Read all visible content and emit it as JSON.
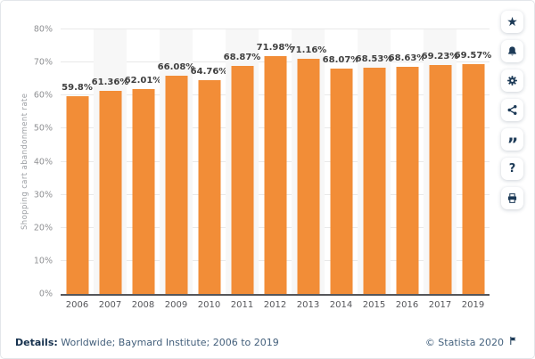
{
  "chart_data": {
    "type": "bar",
    "title": "",
    "categories": [
      "2006",
      "2007",
      "2008",
      "2009",
      "2010",
      "2011",
      "2012",
      "2013",
      "2014",
      "2015",
      "2016",
      "2017",
      "2019"
    ],
    "values": [
      59.8,
      61.36,
      62.01,
      66.08,
      64.76,
      68.87,
      71.98,
      71.16,
      68.07,
      68.53,
      68.63,
      69.23,
      69.57
    ],
    "value_labels": [
      "59.8%",
      "61.36%",
      "62.01%",
      "66.08%",
      "64.76%",
      "68.87%",
      "71.98%",
      "71.16%",
      "68.07%",
      "68.53%",
      "68.63%",
      "69.23%",
      "69.57%"
    ],
    "xlabel": "",
    "ylabel": "Shopping cart abandonment rate",
    "ylim": [
      0,
      80
    ],
    "ytick_step": 10,
    "ytick_suffix": "%",
    "grid": true,
    "legend": null,
    "bar_color": "#f28d37",
    "stripe_color": "#f7f7f7"
  },
  "sidebar": {
    "buttons": [
      {
        "icon": "star-icon",
        "name": "favorite"
      },
      {
        "icon": "bell-icon",
        "name": "alert"
      },
      {
        "icon": "gear-icon",
        "name": "settings"
      },
      {
        "icon": "share-icon",
        "name": "share"
      },
      {
        "icon": "quote-icon",
        "name": "cite"
      },
      {
        "icon": "question-icon",
        "name": "help"
      },
      {
        "icon": "printer-icon",
        "name": "print"
      }
    ]
  },
  "footer": {
    "details_label": "Details:",
    "details_text": "Worldwide; Baymard Institute; 2006 to 2019",
    "copyright": "© Statista 2020"
  },
  "colors": {
    "bar": "#f28d37",
    "navy": "#1c3a57",
    "footer_text": "#44607c",
    "axis_line": "#55565a",
    "gridline": "#e9e9e9"
  }
}
